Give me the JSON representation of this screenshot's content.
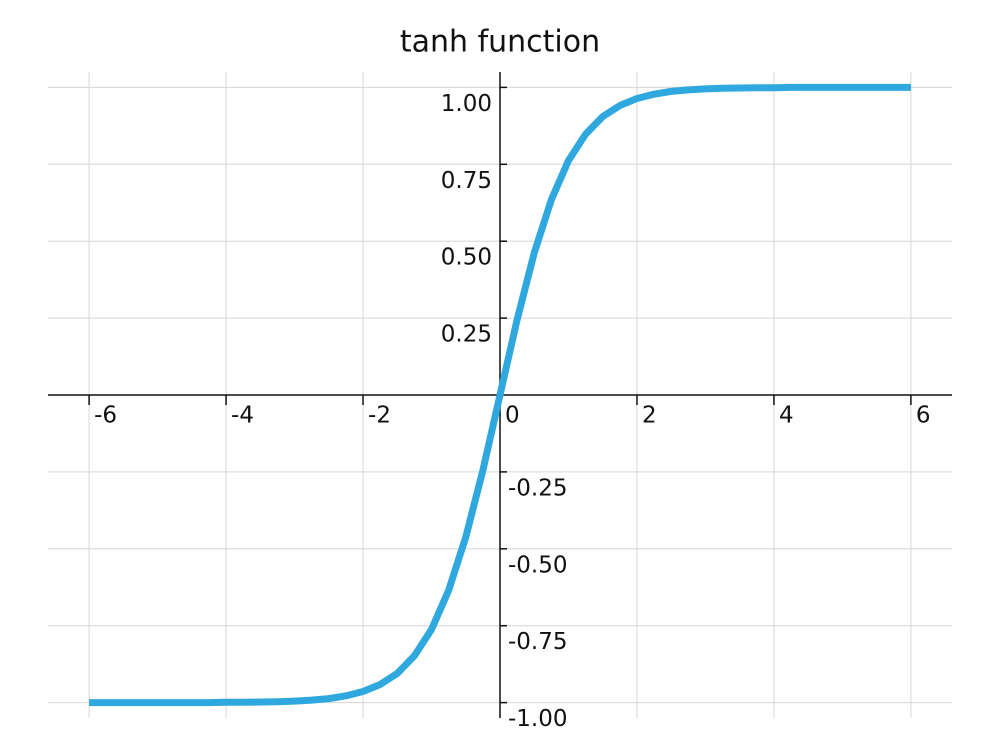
{
  "chart_data": {
    "type": "line",
    "title": "tanh function",
    "x": [
      -6,
      -5.75,
      -5.5,
      -5.25,
      -5,
      -4.75,
      -4.5,
      -4.25,
      -4,
      -3.75,
      -3.5,
      -3.25,
      -3,
      -2.75,
      -2.5,
      -2.25,
      -2,
      -1.75,
      -1.5,
      -1.25,
      -1,
      -0.75,
      -0.5,
      -0.25,
      0,
      0.25,
      0.5,
      0.75,
      1,
      1.25,
      1.5,
      1.75,
      2,
      2.25,
      2.5,
      2.75,
      3,
      3.25,
      3.5,
      3.75,
      4,
      4.25,
      4.5,
      4.75,
      5,
      5.25,
      5.5,
      5.75,
      6
    ],
    "values": [
      -1,
      -1,
      -1,
      -1,
      -1,
      -1,
      -1,
      -1,
      -0.999,
      -0.999,
      -0.998,
      -0.997,
      -0.995,
      -0.992,
      -0.987,
      -0.978,
      -0.964,
      -0.941,
      -0.905,
      -0.848,
      -0.762,
      -0.635,
      -0.462,
      -0.245,
      0,
      0.245,
      0.462,
      0.635,
      0.762,
      0.848,
      0.905,
      0.941,
      0.964,
      0.978,
      0.987,
      0.992,
      0.995,
      0.997,
      0.998,
      0.999,
      0.999,
      1,
      1,
      1,
      1,
      1,
      1,
      1,
      1
    ],
    "color": "#2ea8df",
    "xlim": [
      -6.6,
      6.6
    ],
    "xticks": [
      -6,
      -4,
      -2,
      0,
      2,
      4,
      6
    ],
    "ylim": [
      -1.05,
      1.05
    ],
    "yticks": [
      {
        "value": -1,
        "label": "-1.00"
      },
      -0.75,
      {
        "value": -0.5,
        "label": "-0.50"
      },
      -0.25,
      0.25,
      {
        "value": 0.5,
        "label": "0.50"
      },
      0.75,
      {
        "value": 1,
        "label": "1.00"
      }
    ],
    "grid": true
  }
}
